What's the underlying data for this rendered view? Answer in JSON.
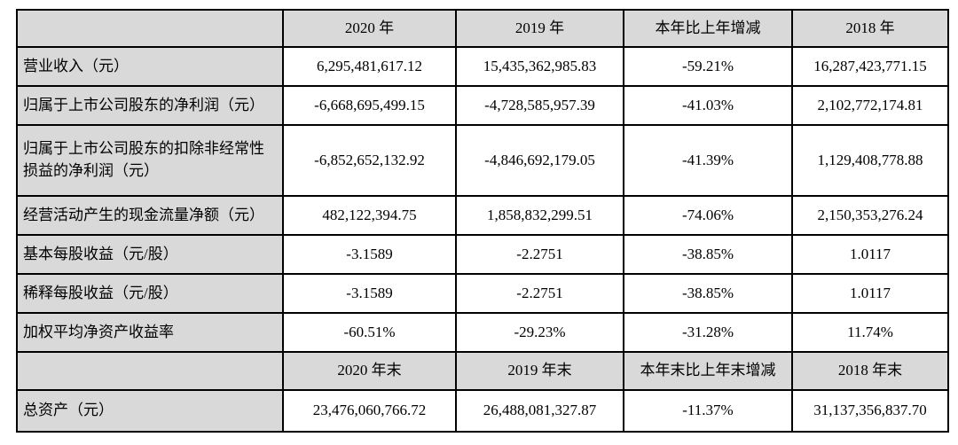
{
  "table": {
    "header_top": {
      "corner": "",
      "cols": [
        "2020 年",
        "2019 年",
        "本年比上年增减",
        "2018 年"
      ]
    },
    "rows": [
      {
        "label": "营业收入（元）",
        "values": [
          "6,295,481,617.12",
          "15,435,362,985.83",
          "-59.21%",
          "16,287,423,771.15"
        ]
      },
      {
        "label": "归属于上市公司股东的净利润（元）",
        "values": [
          "-6,668,695,499.15",
          "-4,728,585,957.39",
          "-41.03%",
          "2,102,772,174.81"
        ]
      },
      {
        "label": "归属于上市公司股东的扣除非经常性损益的净利润（元）",
        "values": [
          "-6,852,652,132.92",
          "-4,846,692,179.05",
          "-41.39%",
          "1,129,408,778.88"
        ]
      },
      {
        "label": "经营活动产生的现金流量净额（元）",
        "values": [
          "482,122,394.75",
          "1,858,832,299.51",
          "-74.06%",
          "2,150,353,276.24"
        ]
      },
      {
        "label": "基本每股收益（元/股）",
        "values": [
          "-3.1589",
          "-2.2751",
          "-38.85%",
          "1.0117"
        ]
      },
      {
        "label": "稀释每股收益（元/股）",
        "values": [
          "-3.1589",
          "-2.2751",
          "-38.85%",
          "1.0117"
        ]
      },
      {
        "label": "加权平均净资产收益率",
        "values": [
          "-60.51%",
          "-29.23%",
          "-31.28%",
          "11.74%"
        ]
      }
    ],
    "header_bottom": {
      "corner": "",
      "cols": [
        "2020 年末",
        "2019 年末",
        "本年末比上年末增减",
        "2018 年末"
      ]
    },
    "rows_bottom": [
      {
        "label": "总资产（元）",
        "values": [
          "23,476,060,766.72",
          "26,488,081,327.87",
          "-11.37%",
          "31,137,356,837.70"
        ]
      }
    ],
    "colors": {
      "header_bg": "#d9d9d9",
      "label_bg": "#d9d9d9",
      "cell_bg": "#ffffff",
      "border": "#000000",
      "text": "#000000"
    }
  }
}
